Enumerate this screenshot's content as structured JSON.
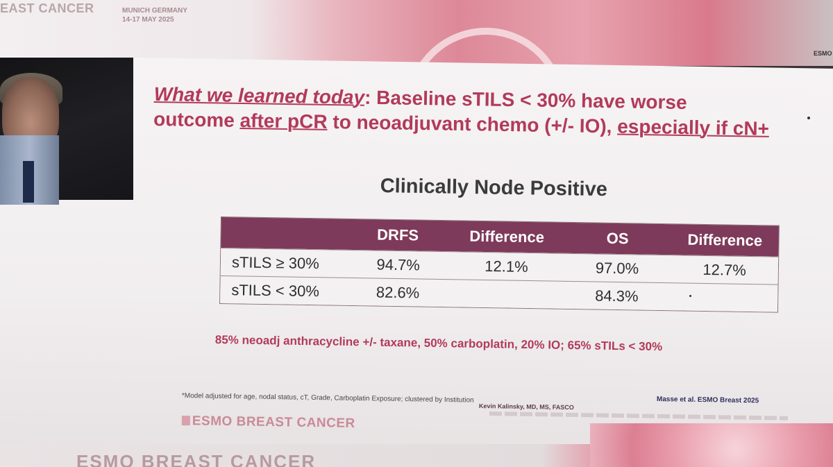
{
  "banner": {
    "brand": "EAST CANCER",
    "location_line1": "MUNICH GERMANY",
    "location_line2": "14-17 MAY 2025",
    "corner": "ESMO"
  },
  "headline": {
    "part1": "What we learned today",
    "part2": ": Baseline sTILS < 30% have worse",
    "part3": "outcome ",
    "part4": "after pCR",
    "part5": " to neoadjuvant chemo (+/- IO), ",
    "part6": "especially if cN+"
  },
  "subtitle": "Clinically Node Positive",
  "table": {
    "headers": [
      "",
      "DRFS",
      "Difference",
      "OS",
      "Difference"
    ],
    "rows": [
      [
        "sTILS ≥ 30%",
        "94.7%",
        "12.1%",
        "97.0%",
        "12.7%"
      ],
      [
        "sTILS < 30%",
        "82.6%",
        "",
        "84.3%",
        ""
      ]
    ]
  },
  "treatment_note": "85% neoadj anthracycline +/- taxane, 50% carboplatin, 20% IO; 65% sTILs < 30%",
  "model_note": "*Model adjusted for age, nodal status, cT, Grade, Carboplatin Exposure; clustered by Institution",
  "author": "Kevin Kalinsky, MD, MS, FASCO",
  "citation": "Masse et al. ESMO Breast 2025",
  "footer_brand": "ESMO BREAST CANCER",
  "bottom_strip": "ESMO BREAST CANCER"
}
